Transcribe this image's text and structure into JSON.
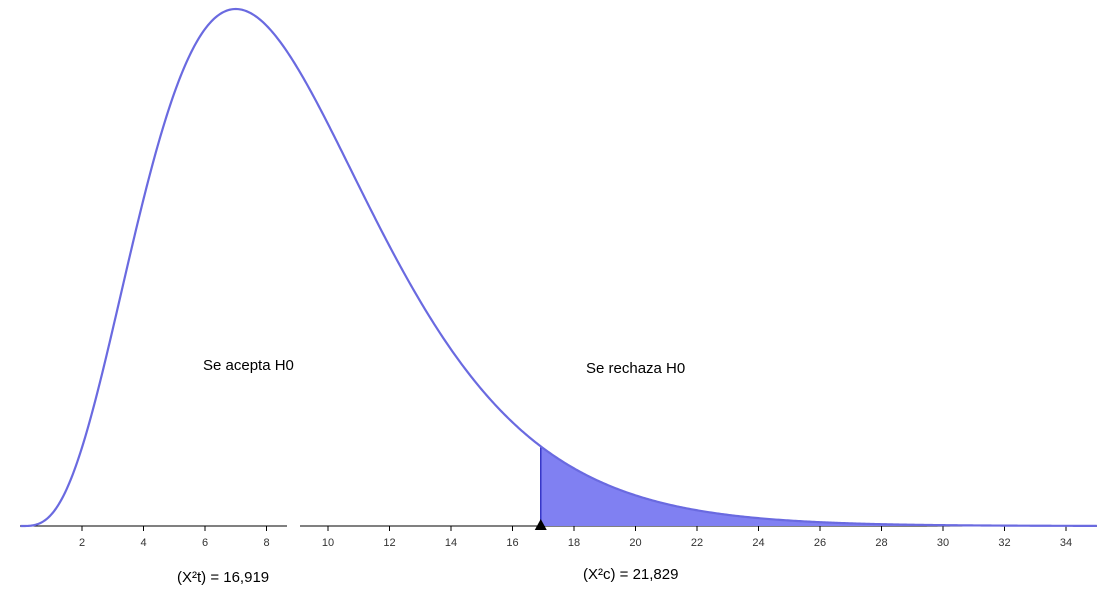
{
  "chart_data": {
    "type": "area",
    "distribution": "chi-square",
    "degrees_of_freedom": 9,
    "xlim": [
      0,
      35
    ],
    "x_ticks": [
      2,
      4,
      6,
      8,
      10,
      12,
      14,
      16,
      18,
      20,
      22,
      24,
      26,
      28,
      30,
      32,
      34
    ],
    "x_tick_labels": [
      "2",
      "4",
      "6",
      "8",
      "10",
      "12",
      "14",
      "16",
      "18",
      "20",
      "22",
      "24",
      "26",
      "28",
      "30",
      "32",
      "34"
    ],
    "critical_value": 16.919,
    "shaded_region": "right-tail",
    "regions": {
      "accept_label": "Se acepta H0",
      "reject_label": "Se rechaza H0"
    },
    "annotations": {
      "table_value": "(X²t) = 16,919",
      "calculated_value": "(X²c) = 21,829"
    },
    "colors": {
      "curve": "#6a6ae0",
      "fill": "#8080f2",
      "tail_edge": "#2020c0",
      "axis": "#000000",
      "marker": "#000000"
    }
  }
}
